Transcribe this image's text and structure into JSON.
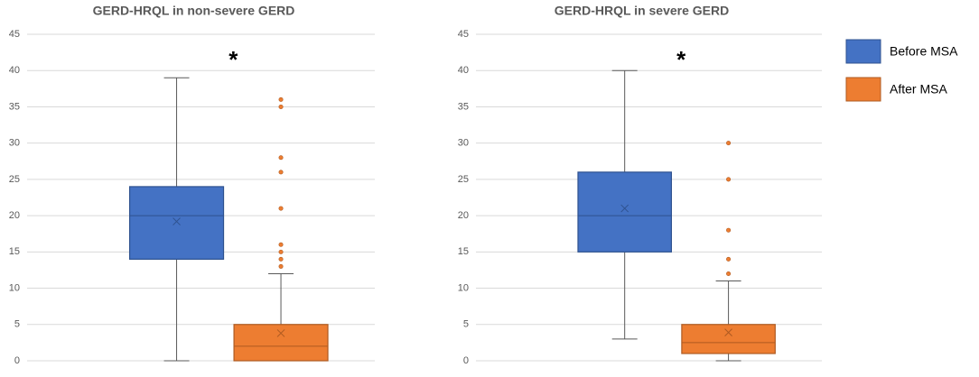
{
  "chart_data": [
    {
      "type": "box",
      "title": "GERD-HRQL in non-severe GERD",
      "annotation": "*",
      "ylim": [
        0,
        45
      ],
      "yticks": [
        0,
        5,
        10,
        15,
        20,
        25,
        30,
        35,
        40,
        45
      ],
      "grid": true,
      "series": [
        {
          "color": "#4472c4",
          "min": 0,
          "q1": 14,
          "median": 20,
          "q3": 24,
          "max": 39,
          "mean": 19.2,
          "outliers": []
        },
        {
          "color": "#ed7d31",
          "min": 0,
          "q1": 0,
          "median": 2,
          "q3": 5,
          "max": 12,
          "mean": 3.8,
          "outliers": [
            13,
            14,
            15,
            16,
            21,
            26,
            28,
            35,
            36
          ]
        }
      ]
    },
    {
      "type": "box",
      "title": "GERD-HRQL in severe GERD",
      "annotation": "*",
      "ylim": [
        0,
        45
      ],
      "yticks": [
        0,
        5,
        10,
        15,
        20,
        25,
        30,
        35,
        40,
        45
      ],
      "grid": true,
      "legend": "right",
      "series": [
        {
          "name": "Before MSA",
          "color": "#4472c4",
          "min": 3,
          "q1": 15,
          "median": 20,
          "q3": 26,
          "max": 40,
          "mean": 21,
          "outliers": []
        },
        {
          "name": "After MSA",
          "color": "#ed7d31",
          "min": 0,
          "q1": 1,
          "median": 2.5,
          "q3": 5,
          "max": 11,
          "mean": 3.9,
          "outliers": [
            12,
            14,
            18,
            25,
            30
          ]
        }
      ]
    }
  ]
}
